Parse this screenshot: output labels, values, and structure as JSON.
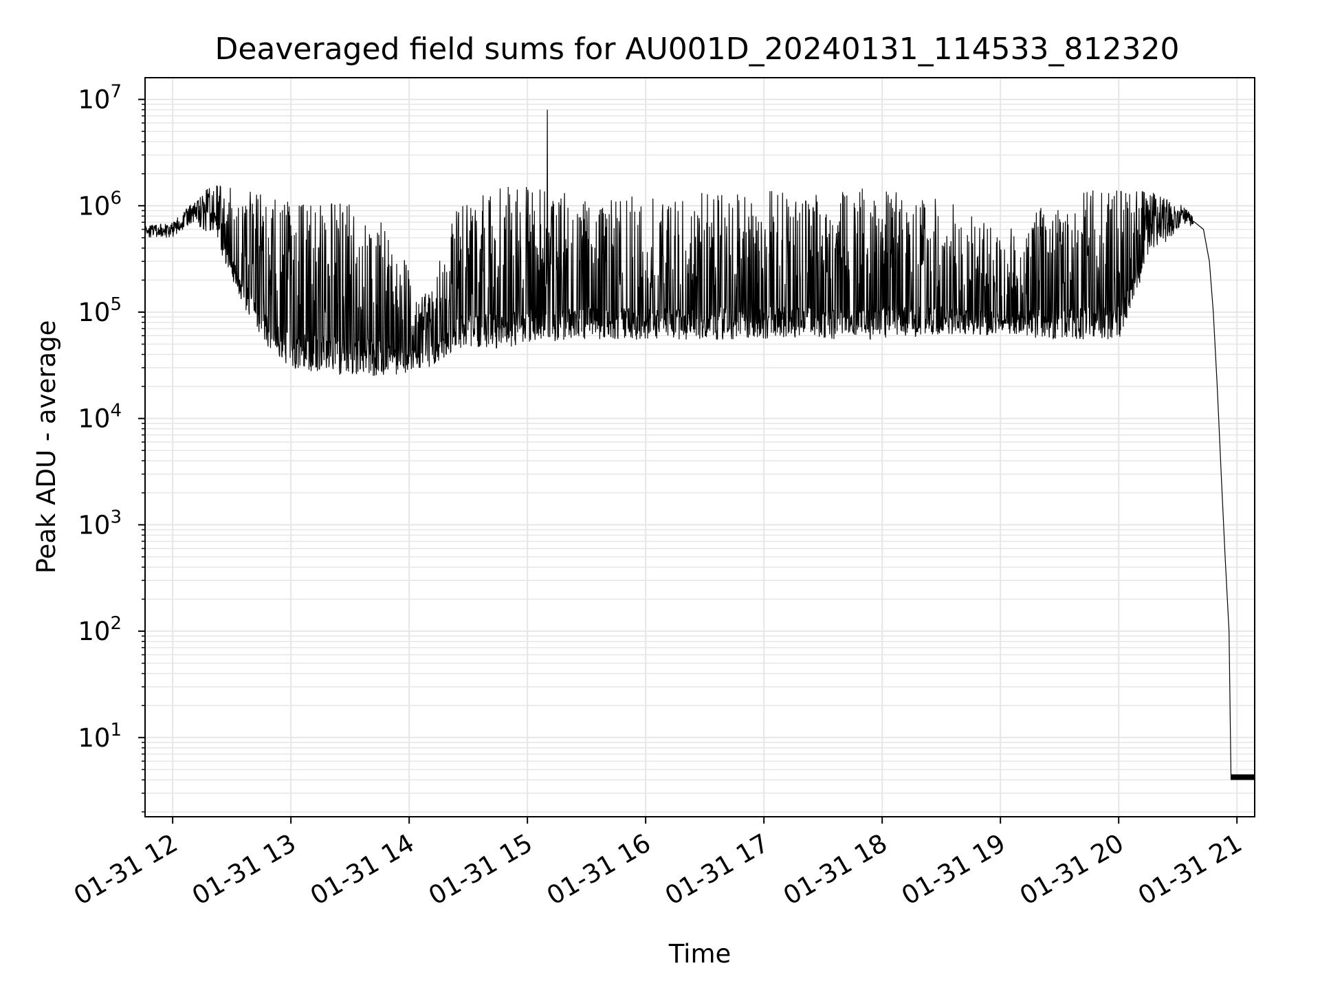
{
  "chart_data": {
    "type": "line",
    "title": "Deaveraged field sums for AU001D_20240131_114533_812320",
    "xlabel": "Time",
    "ylabel": "Peak ADU - average",
    "yscale": "log",
    "ylim": [
      1.8,
      16000000
    ],
    "xlim": [
      "01-31 11:46",
      "01-31 21:09"
    ],
    "grid": true,
    "line_color": "#000000",
    "grid_color": "#e6e6e6",
    "x_ticks": [
      {
        "time": "01-31 12:00",
        "label": "01-31 12"
      },
      {
        "time": "01-31 13:00",
        "label": "01-31 13"
      },
      {
        "time": "01-31 14:00",
        "label": "01-31 14"
      },
      {
        "time": "01-31 15:00",
        "label": "01-31 15"
      },
      {
        "time": "01-31 16:00",
        "label": "01-31 16"
      },
      {
        "time": "01-31 17:00",
        "label": "01-31 17"
      },
      {
        "time": "01-31 18:00",
        "label": "01-31 18"
      },
      {
        "time": "01-31 19:00",
        "label": "01-31 19"
      },
      {
        "time": "01-31 20:00",
        "label": "01-31 20"
      },
      {
        "time": "01-31 21:00",
        "label": "01-31 21"
      }
    ],
    "y_ticks": [
      {
        "value": 10,
        "base": "10",
        "exp": "1"
      },
      {
        "value": 100,
        "base": "10",
        "exp": "2"
      },
      {
        "value": 1000,
        "base": "10",
        "exp": "3"
      },
      {
        "value": 10000,
        "base": "10",
        "exp": "4"
      },
      {
        "value": 100000,
        "base": "10",
        "exp": "5"
      },
      {
        "value": 1000000,
        "base": "10",
        "exp": "6"
      },
      {
        "value": 10000000,
        "base": "10",
        "exp": "7"
      }
    ],
    "series": [
      {
        "envelope": [
          {
            "t": "01-31 11:46",
            "low": 500000,
            "high": 650000
          },
          {
            "t": "01-31 12:00",
            "low": 500000,
            "high": 700000
          },
          {
            "t": "01-31 12:10",
            "low": 700000,
            "high": 1100000
          },
          {
            "t": "01-31 12:20",
            "low": 500000,
            "high": 1600000
          },
          {
            "t": "01-31 12:30",
            "low": 200000,
            "high": 1700000
          },
          {
            "t": "01-31 12:40",
            "low": 80000,
            "high": 1400000
          },
          {
            "t": "01-31 12:50",
            "low": 40000,
            "high": 1200000
          },
          {
            "t": "01-31 13:00",
            "low": 30000,
            "high": 1100000
          },
          {
            "t": "01-31 13:20",
            "low": 25000,
            "high": 1200000
          },
          {
            "t": "01-31 13:40",
            "low": 25000,
            "high": 1000000
          },
          {
            "t": "01-31 13:55",
            "low": 26000,
            "high": 400000
          },
          {
            "t": "01-31 14:10",
            "low": 30000,
            "high": 150000
          },
          {
            "t": "01-31 14:25",
            "low": 45000,
            "high": 1200000
          },
          {
            "t": "01-31 14:45",
            "low": 45000,
            "high": 1500000
          },
          {
            "t": "01-31 15:00",
            "low": 50000,
            "high": 1600000
          },
          {
            "t": "01-31 15:20",
            "low": 55000,
            "high": 1400000
          },
          {
            "t": "01-31 16:00",
            "low": 55000,
            "high": 1300000
          },
          {
            "t": "01-31 17:00",
            "low": 55000,
            "high": 1400000
          },
          {
            "t": "01-31 18:00",
            "low": 55000,
            "high": 1500000
          },
          {
            "t": "01-31 18:30",
            "low": 60000,
            "high": 1200000
          },
          {
            "t": "01-31 19:00",
            "low": 60000,
            "high": 600000
          },
          {
            "t": "01-31 19:30",
            "low": 55000,
            "high": 1200000
          },
          {
            "t": "01-31 20:00",
            "low": 55000,
            "high": 1600000
          },
          {
            "t": "01-31 20:15",
            "low": 300000,
            "high": 1400000
          },
          {
            "t": "01-31 20:30",
            "low": 600000,
            "high": 1100000
          },
          {
            "t": "01-31 20:38",
            "low": 650000,
            "high": 800000
          }
        ],
        "peak": {
          "t": "01-31 15:10",
          "value": 8000000
        },
        "decay": [
          {
            "t": "01-31 20:38",
            "value": 750000
          },
          {
            "t": "01-31 20:43",
            "value": 600000
          },
          {
            "t": "01-31 20:46",
            "value": 300000
          },
          {
            "t": "01-31 20:48",
            "value": 100000
          },
          {
            "t": "01-31 20:50",
            "value": 20000
          },
          {
            "t": "01-31 20:52",
            "value": 3000
          },
          {
            "t": "01-31 20:54",
            "value": 500
          },
          {
            "t": "01-31 20:56",
            "value": 100
          },
          {
            "t": "01-31 20:57",
            "value": 4
          },
          {
            "t": "01-31 21:09",
            "value": 4
          }
        ],
        "floor_fluctuation": [
          4,
          4.5
        ]
      }
    ]
  }
}
